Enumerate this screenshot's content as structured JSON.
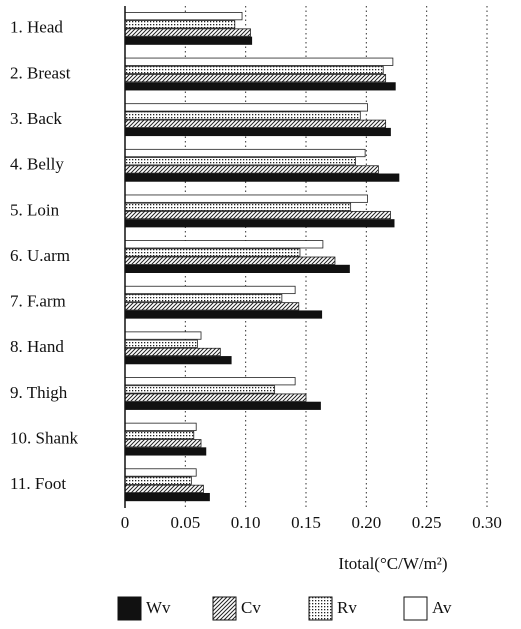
{
  "chart_data": {
    "type": "hbar",
    "xlabel": "Itotal(°C/W/m²)",
    "categories": [
      "1. Head",
      "2. Breast",
      "3. Back",
      "4. Belly",
      "5. Loin",
      "6. U.arm",
      "7. F.arm",
      "8. Hand",
      "9. Thigh",
      "10. Shank",
      "11. Foot"
    ],
    "series": [
      {
        "name": "Wv",
        "color": "#111111",
        "pattern": "solid",
        "values": [
          0.105,
          0.224,
          0.22,
          0.227,
          0.223,
          0.186,
          0.163,
          0.088,
          0.162,
          0.067,
          0.07
        ]
      },
      {
        "name": "Cv",
        "color": "#222222",
        "pattern": "hatch",
        "values": [
          0.104,
          0.216,
          0.216,
          0.21,
          0.22,
          0.174,
          0.144,
          0.079,
          0.15,
          0.063,
          0.065
        ]
      },
      {
        "name": "Rv",
        "color": "#222222",
        "pattern": "dots",
        "values": [
          0.091,
          0.214,
          0.195,
          0.191,
          0.187,
          0.145,
          0.13,
          0.06,
          0.124,
          0.057,
          0.055
        ]
      },
      {
        "name": "Av",
        "color": "#222222",
        "pattern": "none",
        "values": [
          0.097,
          0.222,
          0.201,
          0.199,
          0.201,
          0.164,
          0.141,
          0.063,
          0.141,
          0.059,
          0.059
        ]
      }
    ],
    "xlim": [
      0,
      0.3
    ],
    "xticks": [
      0,
      0.05,
      {
        "value": 0.1,
        "label": "0.10"
      },
      0.15,
      {
        "value": 0.2,
        "label": "0.20"
      },
      0.25,
      {
        "value": 0.3,
        "label": "0.30"
      }
    ],
    "grid": true
  }
}
